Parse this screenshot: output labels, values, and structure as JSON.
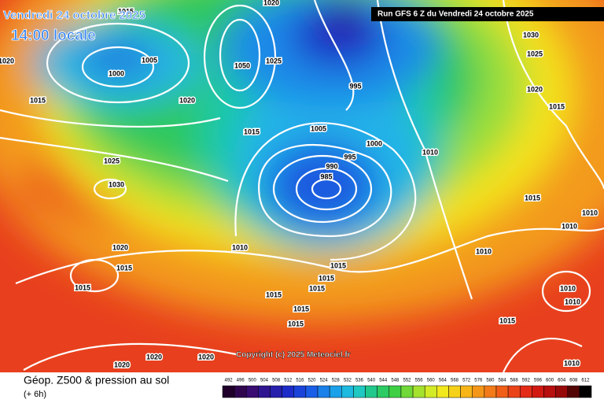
{
  "header": {
    "title": "Vendredi 24 octobre 2025",
    "time": "14:00 locale",
    "run": "Run GFS 6 Z du Vendredi 24 octobre 2025"
  },
  "copyright": "Copyright (c) 2025 Meteociel.fr",
  "footer": {
    "legend_title": "Géop. Z500 & pression au sol",
    "step": "(+ 6h)"
  },
  "colorbar": {
    "labels": [
      492,
      496,
      500,
      504,
      508,
      512,
      516,
      520,
      524,
      528,
      532,
      536,
      540,
      544,
      548,
      552,
      556,
      560,
      564,
      568,
      572,
      576,
      580,
      584,
      588,
      592,
      596,
      600,
      604,
      608,
      612
    ]
  },
  "isobars": {
    "labels": [
      "1015",
      "1020",
      "1020",
      "1005",
      "1000",
      "1050",
      "1025",
      "1015",
      "1020",
      "1015",
      "995",
      "1005",
      "1000",
      "1010",
      "995",
      "990",
      "985",
      "1025",
      "1030",
      "1030",
      "1025",
      "1020",
      "1015",
      "1015",
      "1010",
      "1010",
      "1020",
      "1015",
      "1010",
      "1015",
      "1010",
      "1015",
      "1015",
      "1015",
      "1015",
      "1015",
      "1015",
      "1010",
      "1010",
      "1015",
      "1020",
      "1020",
      "1020",
      "1010"
    ]
  }
}
